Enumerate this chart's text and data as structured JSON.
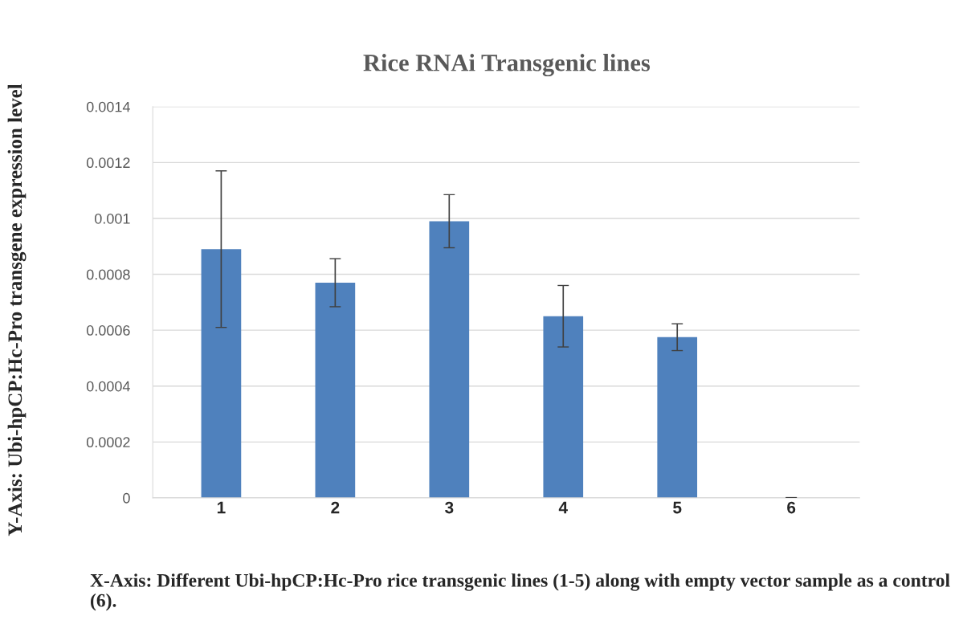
{
  "chart_data": {
    "type": "bar",
    "title": "Rice RNAi Transgenic lines",
    "xlabel": "X-Axis: Different Ubi-hpCP:Hc-Pro rice transgenic lines (1-5) along with empty vector sample as a control (6).",
    "ylabel": "Y-Axis: Ubi-hpCP:Hc-Pro transgene expression level",
    "categories": [
      "1",
      "2",
      "3",
      "4",
      "5",
      "6"
    ],
    "values": [
      0.00089,
      0.00077,
      0.00099,
      0.00065,
      0.000575,
      0
    ],
    "errors": [
      0.00028,
      8.6e-05,
      9.5e-05,
      0.00011,
      4.8e-05,
      1e-06
    ],
    "color": "#4f81bd",
    "ylim": [
      0,
      0.0014
    ],
    "yticks": [
      0,
      0.0002,
      0.0004,
      0.0006,
      0.0008,
      0.001,
      0.0012,
      0.0014
    ],
    "grid": "y"
  }
}
